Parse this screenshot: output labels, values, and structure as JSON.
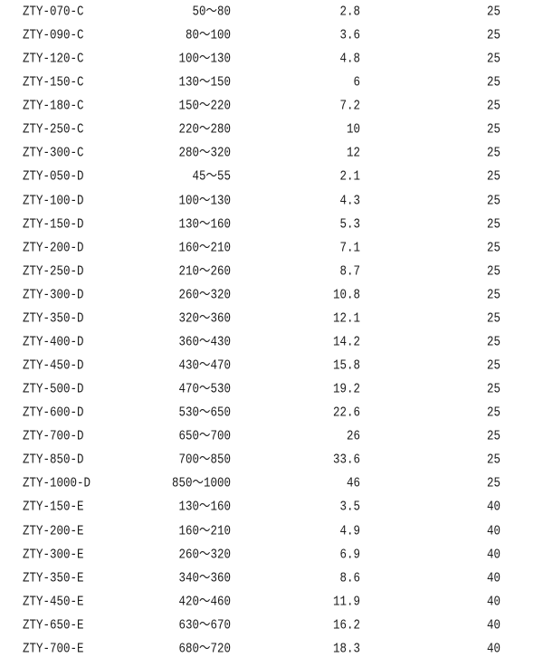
{
  "rows": [
    [
      "ZTY-070-C",
      "50～80",
      "2.8",
      "25"
    ],
    [
      "ZTY-090-C",
      "80～100",
      "3.6",
      "25"
    ],
    [
      "ZTY-120-C",
      "100～130",
      "4.8",
      "25"
    ],
    [
      "ZTY-150-C",
      "130～150",
      "6",
      "25"
    ],
    [
      "ZTY-180-C",
      "150～220",
      "7.2",
      "25"
    ],
    [
      "ZTY-250-C",
      "220～280",
      "10",
      "25"
    ],
    [
      "ZTY-300-C",
      "280～320",
      "12",
      "25"
    ],
    [
      "ZTY-050-D",
      "45～55",
      "2.1",
      "25"
    ],
    [
      "ZTY-100-D",
      "100～130",
      "4.3",
      "25"
    ],
    [
      "ZTY-150-D",
      "130～160",
      "5.3",
      "25"
    ],
    [
      "ZTY-200-D",
      "160～210",
      "7.1",
      "25"
    ],
    [
      "ZTY-250-D",
      "210～260",
      "8.7",
      "25"
    ],
    [
      "ZTY-300-D",
      "260～320",
      "10.8",
      "25"
    ],
    [
      "ZTY-350-D",
      "320～360",
      "12.1",
      "25"
    ],
    [
      "ZTY-400-D",
      "360～430",
      "14.2",
      "25"
    ],
    [
      "ZTY-450-D",
      "430～470",
      "15.8",
      "25"
    ],
    [
      "ZTY-500-D",
      "470～530",
      "19.2",
      "25"
    ],
    [
      "ZTY-600-D",
      "530～650",
      "22.6",
      "25"
    ],
    [
      "ZTY-700-D",
      "650～700",
      "26",
      "25"
    ],
    [
      "ZTY-850-D",
      "700～850",
      "33.6",
      "25"
    ],
    [
      "ZTY-1000-D",
      "850～1000",
      "46",
      "25"
    ],
    [
      "ZTY-150-E",
      "130～160",
      "3.5",
      "40"
    ],
    [
      "ZTY-200-E",
      "160～210",
      "4.9",
      "40"
    ],
    [
      "ZTY-300-E",
      "260～320",
      "6.9",
      "40"
    ],
    [
      "ZTY-350-E",
      "340～360",
      "8.6",
      "40"
    ],
    [
      "ZTY-450-E",
      "420～460",
      "11.9",
      "40"
    ],
    [
      "ZTY-650-E",
      "630～670",
      "16.2",
      "40"
    ],
    [
      "ZTY-700-E",
      "680～720",
      "18.3",
      "40"
    ]
  ]
}
